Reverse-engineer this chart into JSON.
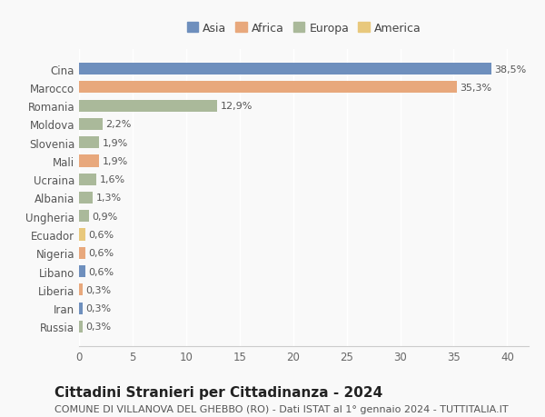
{
  "categories": [
    "Russia",
    "Iran",
    "Liberia",
    "Libano",
    "Nigeria",
    "Ecuador",
    "Ungheria",
    "Albania",
    "Ucraina",
    "Mali",
    "Slovenia",
    "Moldova",
    "Romania",
    "Marocco",
    "Cina"
  ],
  "values": [
    0.3,
    0.3,
    0.3,
    0.6,
    0.6,
    0.6,
    0.9,
    1.3,
    1.6,
    1.9,
    1.9,
    2.2,
    12.9,
    35.3,
    38.5
  ],
  "labels": [
    "0,3%",
    "0,3%",
    "0,3%",
    "0,6%",
    "0,6%",
    "0,6%",
    "0,9%",
    "1,3%",
    "1,6%",
    "1,9%",
    "1,9%",
    "2,2%",
    "12,9%",
    "35,3%",
    "38,5%"
  ],
  "colors": [
    "#aab99a",
    "#6e8fbd",
    "#e8a87c",
    "#6e8fbd",
    "#e8a87c",
    "#e8c87c",
    "#aab99a",
    "#aab99a",
    "#aab99a",
    "#e8a87c",
    "#aab99a",
    "#aab99a",
    "#aab99a",
    "#e8a87c",
    "#6e8fbd"
  ],
  "legend_labels": [
    "Asia",
    "Africa",
    "Europa",
    "America"
  ],
  "legend_colors": [
    "#6e8fbd",
    "#e8a87c",
    "#aab99a",
    "#e8c87c"
  ],
  "title": "Cittadini Stranieri per Cittadinanza - 2024",
  "subtitle": "COMUNE DI VILLANOVA DEL GHEBBO (RO) - Dati ISTAT al 1° gennaio 2024 - TUTTITALIA.IT",
  "xlim": [
    0,
    42
  ],
  "xticks": [
    0,
    5,
    10,
    15,
    20,
    25,
    30,
    35,
    40
  ],
  "background_color": "#f9f9f9",
  "grid_color": "#ffffff",
  "bar_height": 0.65,
  "title_fontsize": 11,
  "subtitle_fontsize": 8,
  "label_fontsize": 8,
  "tick_fontsize": 8.5
}
